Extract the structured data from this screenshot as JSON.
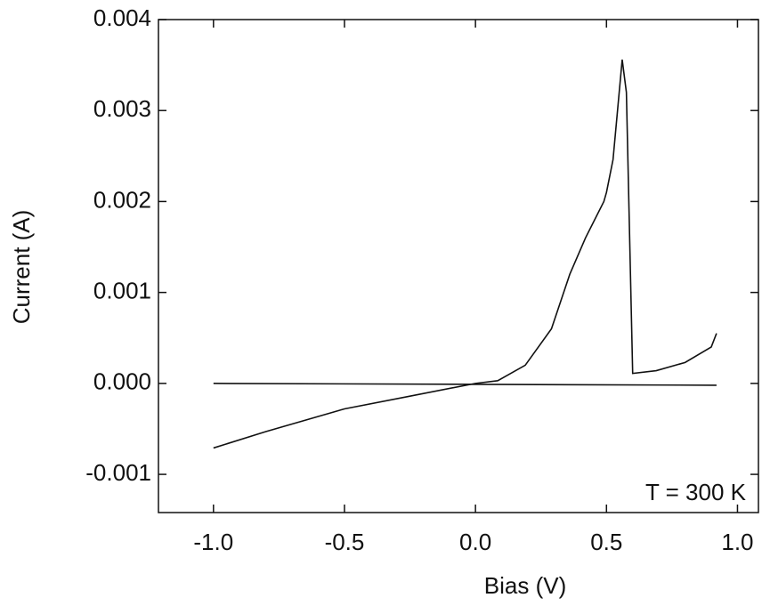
{
  "chart_data": {
    "type": "line",
    "xlabel": "Bias (V)",
    "ylabel": "Current (A)",
    "annotation": "T = 300 K",
    "xlim": [
      -1.21,
      1.08
    ],
    "ylim": [
      -0.00142,
      0.004
    ],
    "xticks": [
      {
        "value": -1.0,
        "label": "-1.0"
      },
      -0.5,
      {
        "value": 0.0,
        "label": "0.0"
      },
      0.5,
      {
        "value": 1.0,
        "label": "1.0"
      }
    ],
    "yticks": [
      -0.001,
      {
        "value": 0,
        "label": "0.000"
      },
      0.001,
      0.002,
      0.003,
      0.004
    ],
    "series": [
      {
        "color": "#111111",
        "x": [
          -1.0,
          -0.8,
          -0.5,
          -0.25,
          0.0,
          0.085,
          0.19,
          0.29,
          0.36,
          0.42,
          0.49,
          0.5,
          0.525,
          0.56,
          0.576,
          0.6,
          0.69,
          0.8,
          0.9,
          0.92
        ],
        "values": [
          -0.00071,
          -0.00053,
          -0.00028,
          -0.00014,
          0.0,
          3e-05,
          0.0002,
          0.0006,
          0.0012,
          0.0016,
          0.002,
          0.0021,
          0.00246,
          0.00356,
          0.0032,
          0.00011,
          0.00014,
          0.00023,
          0.0004,
          0.00055
        ]
      },
      {
        "color": "#111111",
        "x": [
          -1.0,
          0.92
        ],
        "values": [
          0.0,
          -2e-05
        ]
      }
    ]
  }
}
